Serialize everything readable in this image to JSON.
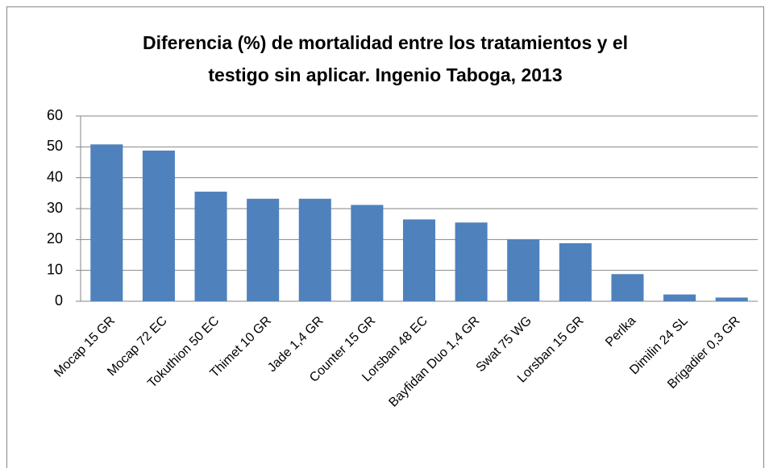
{
  "chart_data": {
    "type": "bar",
    "title": [
      "Diferencia (%) de mortalidad  entre los tratamientos y el",
      "testigo sin aplicar.  Ingenio Taboga, 2013"
    ],
    "categories": [
      "Mocap 15 GR",
      "Mocap 72 EC",
      "Tokuthion 50 EC",
      "Thimet 10 GR",
      "Jade 1,4 GR",
      "Counter 15 GR",
      "Lorsban 48 EC",
      "Bayfidan Duo 1,4 GR",
      "Swat 75 WG",
      "Lorsban 15 GR",
      "Perlka",
      "Dimilin 24 SL",
      "Brigadier 0,3 GR"
    ],
    "values": [
      50.8,
      48.8,
      35.5,
      33.2,
      33.2,
      31.2,
      26.5,
      25.5,
      20,
      18.8,
      8.8,
      2.2,
      1.2
    ],
    "color": "#4f81bd",
    "ylim": [
      0,
      60
    ],
    "yticks": [
      0,
      10,
      20,
      30,
      40,
      50,
      60
    ],
    "grid": true
  }
}
